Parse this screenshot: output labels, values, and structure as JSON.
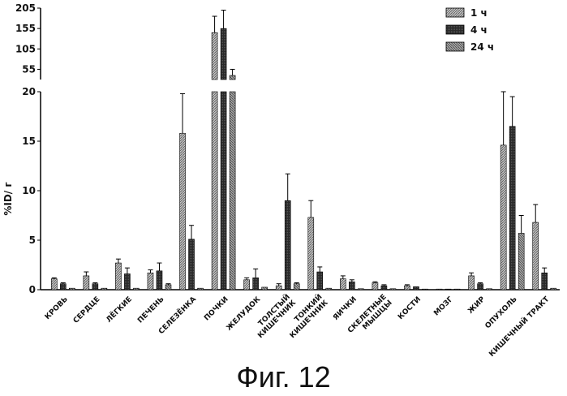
{
  "caption": "Фиг. 12",
  "chart_data": {
    "type": "bar",
    "ylabel": "%ID/ г",
    "xlabel": "",
    "title": "",
    "ylim_lower": [
      0,
      20
    ],
    "ylim_upper": [
      30,
      205
    ],
    "yticks_lower": [
      0,
      5,
      10,
      15,
      20
    ],
    "yticks_upper": [
      55,
      105,
      155,
      205
    ],
    "broken_axis": true,
    "legend_position": "top-right",
    "categories": [
      [
        "КРОВЬ"
      ],
      [
        "СЕРДЦЕ"
      ],
      [
        "ЛЁГКИЕ"
      ],
      [
        "ПЕЧЕНЬ"
      ],
      [
        "СЕЛЕЗЁНКА"
      ],
      [
        "ПОЧКИ"
      ],
      [
        "ЖЕЛУДОК"
      ],
      [
        "ТОЛСТЫЙ",
        "КИШЕЧНИК"
      ],
      [
        "ТОНКИЙ",
        "КИШЕЧНИК"
      ],
      [
        "ЯИЧКИ"
      ],
      [
        "СКЕЛЕТНЫЕ",
        "МЫШЦЫ"
      ],
      [
        "КОСТИ"
      ],
      [
        "МОЗГ"
      ],
      [
        "ЖИР"
      ],
      [
        "ОПУХОЛЬ"
      ],
      [
        "КИШЕЧНЫЙ ТРАКТ"
      ]
    ],
    "series": [
      {
        "name": "1 ч",
        "color": "#9a9a9a",
        "pattern": "hatch",
        "values": [
          1.1,
          1.4,
          2.7,
          1.7,
          15.8,
          145,
          1.0,
          0.4,
          7.3,
          1.1,
          0.7,
          0.4,
          0.05,
          1.4,
          14.6,
          6.8
        ],
        "errors": [
          0.1,
          0.4,
          0.4,
          0.3,
          4.0,
          40,
          0.2,
          0.2,
          1.7,
          0.3,
          0.1,
          0.1,
          0.0,
          0.3,
          5.8,
          1.8
        ]
      },
      {
        "name": "4 ч",
        "color": "#262626",
        "pattern": "dense",
        "values": [
          0.6,
          0.6,
          1.6,
          1.9,
          5.1,
          155,
          1.2,
          9.0,
          1.8,
          0.8,
          0.4,
          0.3,
          0.05,
          0.6,
          16.5,
          1.7
        ],
        "errors": [
          0.1,
          0.1,
          0.6,
          0.8,
          1.4,
          45,
          0.9,
          2.7,
          0.5,
          0.2,
          0.1,
          0.0,
          0.0,
          0.1,
          3.0,
          0.5
        ]
      },
      {
        "name": "24 ч",
        "color": "#7d7d7d",
        "pattern": "hatch",
        "values": [
          0.15,
          0.15,
          0.15,
          0.5,
          0.15,
          40,
          0.25,
          0.6,
          0.15,
          0.1,
          0.1,
          0.05,
          0.05,
          0.1,
          5.7,
          0.15
        ],
        "errors": [
          0.0,
          0.0,
          0.0,
          0.1,
          0.0,
          15,
          0.0,
          0.1,
          0.0,
          0.0,
          0.0,
          0.0,
          0.0,
          0.0,
          1.8,
          0.0
        ]
      }
    ]
  }
}
